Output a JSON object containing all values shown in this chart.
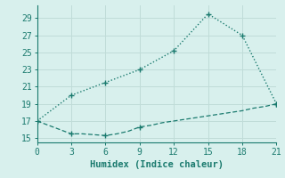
{
  "line1_x": [
    0,
    3,
    6,
    9,
    12,
    15,
    18,
    21
  ],
  "line1_y": [
    17.0,
    20.0,
    21.5,
    23.0,
    25.2,
    29.5,
    27.0,
    19.0
  ],
  "line2_x": [
    0,
    3,
    4,
    5,
    6,
    7,
    8,
    9,
    10,
    11,
    12,
    13,
    14,
    15,
    16,
    17,
    18,
    19,
    20,
    21
  ],
  "line2_y": [
    17.0,
    15.5,
    15.5,
    15.4,
    15.3,
    15.5,
    15.8,
    16.3,
    16.5,
    16.8,
    17.0,
    17.2,
    17.4,
    17.6,
    17.8,
    18.0,
    18.2,
    18.5,
    18.7,
    19.0
  ],
  "line_color": "#1a7a6e",
  "bg_color": "#d8f0ed",
  "grid_color_major": "#c0dcd8",
  "grid_color_minor": "#e0f0ee",
  "xlabel": "Humidex (Indice chaleur)",
  "xlim": [
    0,
    21
  ],
  "ylim": [
    14.5,
    30.5
  ],
  "xticks": [
    0,
    3,
    6,
    9,
    12,
    15,
    18,
    21
  ],
  "yticks": [
    15,
    17,
    19,
    21,
    23,
    25,
    27,
    29
  ],
  "marker_x_line1": [
    0,
    3,
    6,
    9,
    12,
    15,
    18,
    21
  ],
  "marker_y_line1": [
    17.0,
    20.0,
    21.5,
    23.0,
    25.2,
    29.5,
    27.0,
    19.0
  ],
  "marker_x_line2": [
    0,
    3,
    6,
    9,
    21
  ],
  "marker_y_line2": [
    17.0,
    15.5,
    15.3,
    16.3,
    19.0
  ]
}
